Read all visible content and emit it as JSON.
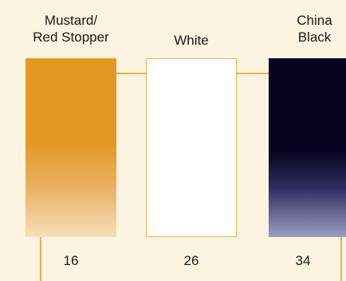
{
  "swatches": [
    {
      "label": "Mustard/\nRed Stopper",
      "number": "16",
      "color": "#e39a25"
    },
    {
      "label": "White",
      "number": "26",
      "color": "#ffffff"
    },
    {
      "label": "China\nBlack",
      "number": "34",
      "color": "#05051f"
    }
  ],
  "connector_color": "#e8b54a",
  "background_color": "#fdf3e1"
}
